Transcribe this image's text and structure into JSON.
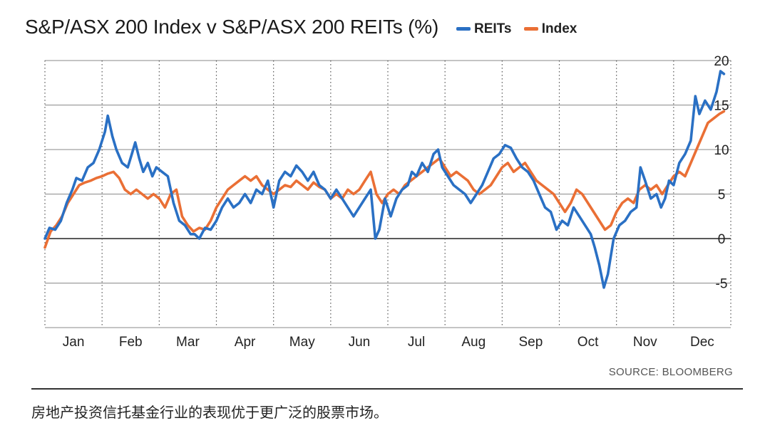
{
  "header": {
    "title": "S&P/ASX 200 Index v S&P/ASX 200 REITs (%)"
  },
  "footer": {
    "source": "SOURCE: BLOOMBERG",
    "caption": "房地产投资信托基金行业的表现优于更广泛的股票市场。"
  },
  "chart_data": {
    "type": "line",
    "title": "S&P/ASX 200 Index v S&P/ASX 200 REITs (%)",
    "xlabel": "",
    "ylabel": "",
    "ylim": [
      -10,
      20
    ],
    "xlim": [
      0,
      12
    ],
    "yticks": [
      20,
      15,
      10,
      5,
      0,
      -5
    ],
    "grid": true,
    "legend_position": "top-right",
    "categories": [
      "Jan",
      "Feb",
      "Mar",
      "Apr",
      "May",
      "Jun",
      "Jul",
      "Aug",
      "Sep",
      "Oct",
      "Nov",
      "Dec"
    ],
    "colors": {
      "REITs": "#2a70c4",
      "Index": "#ea6f35",
      "grid": "#8a8a8a",
      "zero": "#222222"
    },
    "series": [
      {
        "name": "REITs",
        "points": [
          [
            0.0,
            0.0
          ],
          [
            0.08,
            1.2
          ],
          [
            0.18,
            1.0
          ],
          [
            0.28,
            2.0
          ],
          [
            0.38,
            4.0
          ],
          [
            0.48,
            5.5
          ],
          [
            0.55,
            6.8
          ],
          [
            0.65,
            6.5
          ],
          [
            0.75,
            8.0
          ],
          [
            0.85,
            8.5
          ],
          [
            0.95,
            10.0
          ],
          [
            1.0,
            11.0
          ],
          [
            1.05,
            12.0
          ],
          [
            1.1,
            13.8
          ],
          [
            1.18,
            11.5
          ],
          [
            1.25,
            10.0
          ],
          [
            1.35,
            8.5
          ],
          [
            1.45,
            8.0
          ],
          [
            1.52,
            9.5
          ],
          [
            1.58,
            10.8
          ],
          [
            1.65,
            9.0
          ],
          [
            1.72,
            7.5
          ],
          [
            1.8,
            8.5
          ],
          [
            1.88,
            7.0
          ],
          [
            1.95,
            8.0
          ],
          [
            2.05,
            7.5
          ],
          [
            2.15,
            7.0
          ],
          [
            2.25,
            4.0
          ],
          [
            2.35,
            2.0
          ],
          [
            2.45,
            1.5
          ],
          [
            2.55,
            0.5
          ],
          [
            2.62,
            0.5
          ],
          [
            2.7,
            0.0
          ],
          [
            2.8,
            1.2
          ],
          [
            2.9,
            1.0
          ],
          [
            3.0,
            2.0
          ],
          [
            3.1,
            3.5
          ],
          [
            3.2,
            4.5
          ],
          [
            3.3,
            3.5
          ],
          [
            3.4,
            4.0
          ],
          [
            3.5,
            5.0
          ],
          [
            3.6,
            4.0
          ],
          [
            3.7,
            5.5
          ],
          [
            3.8,
            5.0
          ],
          [
            3.9,
            6.5
          ],
          [
            4.0,
            3.5
          ],
          [
            4.1,
            6.5
          ],
          [
            4.2,
            7.5
          ],
          [
            4.3,
            7.0
          ],
          [
            4.4,
            8.2
          ],
          [
            4.5,
            7.5
          ],
          [
            4.6,
            6.5
          ],
          [
            4.7,
            7.5
          ],
          [
            4.8,
            6.0
          ],
          [
            4.9,
            5.5
          ],
          [
            5.0,
            4.5
          ],
          [
            5.1,
            5.5
          ],
          [
            5.2,
            4.5
          ],
          [
            5.3,
            3.5
          ],
          [
            5.4,
            2.5
          ],
          [
            5.5,
            3.5
          ],
          [
            5.6,
            4.5
          ],
          [
            5.7,
            5.5
          ],
          [
            5.78,
            0.0
          ],
          [
            5.85,
            1.0
          ],
          [
            5.95,
            4.5
          ],
          [
            6.05,
            2.5
          ],
          [
            6.15,
            4.5
          ],
          [
            6.25,
            5.5
          ],
          [
            6.35,
            6.0
          ],
          [
            6.42,
            7.5
          ],
          [
            6.5,
            7.0
          ],
          [
            6.6,
            8.5
          ],
          [
            6.7,
            7.5
          ],
          [
            6.8,
            9.5
          ],
          [
            6.88,
            10.0
          ],
          [
            6.95,
            8.0
          ],
          [
            7.05,
            7.0
          ],
          [
            7.15,
            6.0
          ],
          [
            7.25,
            5.5
          ],
          [
            7.35,
            5.0
          ],
          [
            7.45,
            4.0
          ],
          [
            7.55,
            5.0
          ],
          [
            7.65,
            6.0
          ],
          [
            7.75,
            7.5
          ],
          [
            7.85,
            9.0
          ],
          [
            7.95,
            9.5
          ],
          [
            8.05,
            10.5
          ],
          [
            8.15,
            10.2
          ],
          [
            8.25,
            9.0
          ],
          [
            8.35,
            8.0
          ],
          [
            8.45,
            7.5
          ],
          [
            8.55,
            6.5
          ],
          [
            8.65,
            5.0
          ],
          [
            8.75,
            3.5
          ],
          [
            8.85,
            3.0
          ],
          [
            8.95,
            1.0
          ],
          [
            9.05,
            2.0
          ],
          [
            9.15,
            1.5
          ],
          [
            9.25,
            3.5
          ],
          [
            9.35,
            2.5
          ],
          [
            9.45,
            1.5
          ],
          [
            9.55,
            0.5
          ],
          [
            9.62,
            -1.0
          ],
          [
            9.7,
            -3.0
          ],
          [
            9.78,
            -5.5
          ],
          [
            9.85,
            -4.0
          ],
          [
            9.95,
            0.0
          ],
          [
            10.05,
            1.5
          ],
          [
            10.15,
            2.0
          ],
          [
            10.25,
            3.0
          ],
          [
            10.35,
            3.5
          ],
          [
            10.42,
            8.0
          ],
          [
            10.5,
            6.5
          ],
          [
            10.6,
            4.5
          ],
          [
            10.7,
            5.0
          ],
          [
            10.78,
            3.5
          ],
          [
            10.85,
            4.5
          ],
          [
            10.92,
            6.5
          ],
          [
            11.0,
            6.0
          ],
          [
            11.1,
            8.5
          ],
          [
            11.2,
            9.5
          ],
          [
            11.3,
            11.0
          ],
          [
            11.38,
            16.0
          ],
          [
            11.45,
            14.0
          ],
          [
            11.55,
            15.5
          ],
          [
            11.65,
            14.5
          ],
          [
            11.75,
            16.5
          ],
          [
            11.82,
            18.8
          ],
          [
            11.88,
            18.5
          ]
        ]
      },
      {
        "name": "Index",
        "points": [
          [
            0.0,
            -1.0
          ],
          [
            0.1,
            0.8
          ],
          [
            0.2,
            1.5
          ],
          [
            0.3,
            2.5
          ],
          [
            0.4,
            4.0
          ],
          [
            0.5,
            5.0
          ],
          [
            0.6,
            6.0
          ],
          [
            0.7,
            6.3
          ],
          [
            0.8,
            6.5
          ],
          [
            0.9,
            6.8
          ],
          [
            1.0,
            7.0
          ],
          [
            1.1,
            7.3
          ],
          [
            1.2,
            7.5
          ],
          [
            1.3,
            6.8
          ],
          [
            1.4,
            5.5
          ],
          [
            1.5,
            5.0
          ],
          [
            1.6,
            5.5
          ],
          [
            1.7,
            5.0
          ],
          [
            1.8,
            4.5
          ],
          [
            1.9,
            5.0
          ],
          [
            2.0,
            4.5
          ],
          [
            2.1,
            3.5
          ],
          [
            2.2,
            5.0
          ],
          [
            2.3,
            5.5
          ],
          [
            2.4,
            2.5
          ],
          [
            2.5,
            1.5
          ],
          [
            2.6,
            0.8
          ],
          [
            2.7,
            1.2
          ],
          [
            2.8,
            1.0
          ],
          [
            2.9,
            2.0
          ],
          [
            3.0,
            3.5
          ],
          [
            3.1,
            4.5
          ],
          [
            3.2,
            5.5
          ],
          [
            3.3,
            6.0
          ],
          [
            3.4,
            6.5
          ],
          [
            3.5,
            7.0
          ],
          [
            3.6,
            6.5
          ],
          [
            3.7,
            7.0
          ],
          [
            3.8,
            6.0
          ],
          [
            3.9,
            5.5
          ],
          [
            4.0,
            5.0
          ],
          [
            4.1,
            5.5
          ],
          [
            4.2,
            6.0
          ],
          [
            4.3,
            5.8
          ],
          [
            4.4,
            6.5
          ],
          [
            4.5,
            6.0
          ],
          [
            4.6,
            5.5
          ],
          [
            4.7,
            6.3
          ],
          [
            4.8,
            5.8
          ],
          [
            4.9,
            5.5
          ],
          [
            5.0,
            4.5
          ],
          [
            5.1,
            5.0
          ],
          [
            5.2,
            4.5
          ],
          [
            5.3,
            5.5
          ],
          [
            5.4,
            5.0
          ],
          [
            5.5,
            5.5
          ],
          [
            5.6,
            6.5
          ],
          [
            5.7,
            7.5
          ],
          [
            5.8,
            5.0
          ],
          [
            5.9,
            4.0
          ],
          [
            6.0,
            5.0
          ],
          [
            6.1,
            5.5
          ],
          [
            6.2,
            5.0
          ],
          [
            6.3,
            6.0
          ],
          [
            6.4,
            6.5
          ],
          [
            6.5,
            7.0
          ],
          [
            6.6,
            7.5
          ],
          [
            6.7,
            8.0
          ],
          [
            6.8,
            8.5
          ],
          [
            6.9,
            9.0
          ],
          [
            7.0,
            8.0
          ],
          [
            7.1,
            7.0
          ],
          [
            7.2,
            7.5
          ],
          [
            7.3,
            7.0
          ],
          [
            7.4,
            6.5
          ],
          [
            7.5,
            5.5
          ],
          [
            7.6,
            5.0
          ],
          [
            7.7,
            5.5
          ],
          [
            7.8,
            6.0
          ],
          [
            7.9,
            7.0
          ],
          [
            8.0,
            8.0
          ],
          [
            8.1,
            8.5
          ],
          [
            8.2,
            7.5
          ],
          [
            8.3,
            8.0
          ],
          [
            8.4,
            8.5
          ],
          [
            8.5,
            7.5
          ],
          [
            8.6,
            6.5
          ],
          [
            8.7,
            6.0
          ],
          [
            8.8,
            5.5
          ],
          [
            8.9,
            5.0
          ],
          [
            9.0,
            4.0
          ],
          [
            9.1,
            3.0
          ],
          [
            9.2,
            4.0
          ],
          [
            9.3,
            5.5
          ],
          [
            9.4,
            5.0
          ],
          [
            9.5,
            4.0
          ],
          [
            9.6,
            3.0
          ],
          [
            9.7,
            2.0
          ],
          [
            9.8,
            1.0
          ],
          [
            9.9,
            1.5
          ],
          [
            10.0,
            3.0
          ],
          [
            10.1,
            4.0
          ],
          [
            10.2,
            4.5
          ],
          [
            10.3,
            4.0
          ],
          [
            10.4,
            5.5
          ],
          [
            10.5,
            6.0
          ],
          [
            10.6,
            5.5
          ],
          [
            10.7,
            6.0
          ],
          [
            10.8,
            5.0
          ],
          [
            10.9,
            6.0
          ],
          [
            11.0,
            7.0
          ],
          [
            11.1,
            7.5
          ],
          [
            11.2,
            7.0
          ],
          [
            11.3,
            8.5
          ],
          [
            11.4,
            10.0
          ],
          [
            11.5,
            11.5
          ],
          [
            11.6,
            13.0
          ],
          [
            11.7,
            13.5
          ],
          [
            11.8,
            14.0
          ],
          [
            11.88,
            14.3
          ]
        ]
      }
    ]
  }
}
